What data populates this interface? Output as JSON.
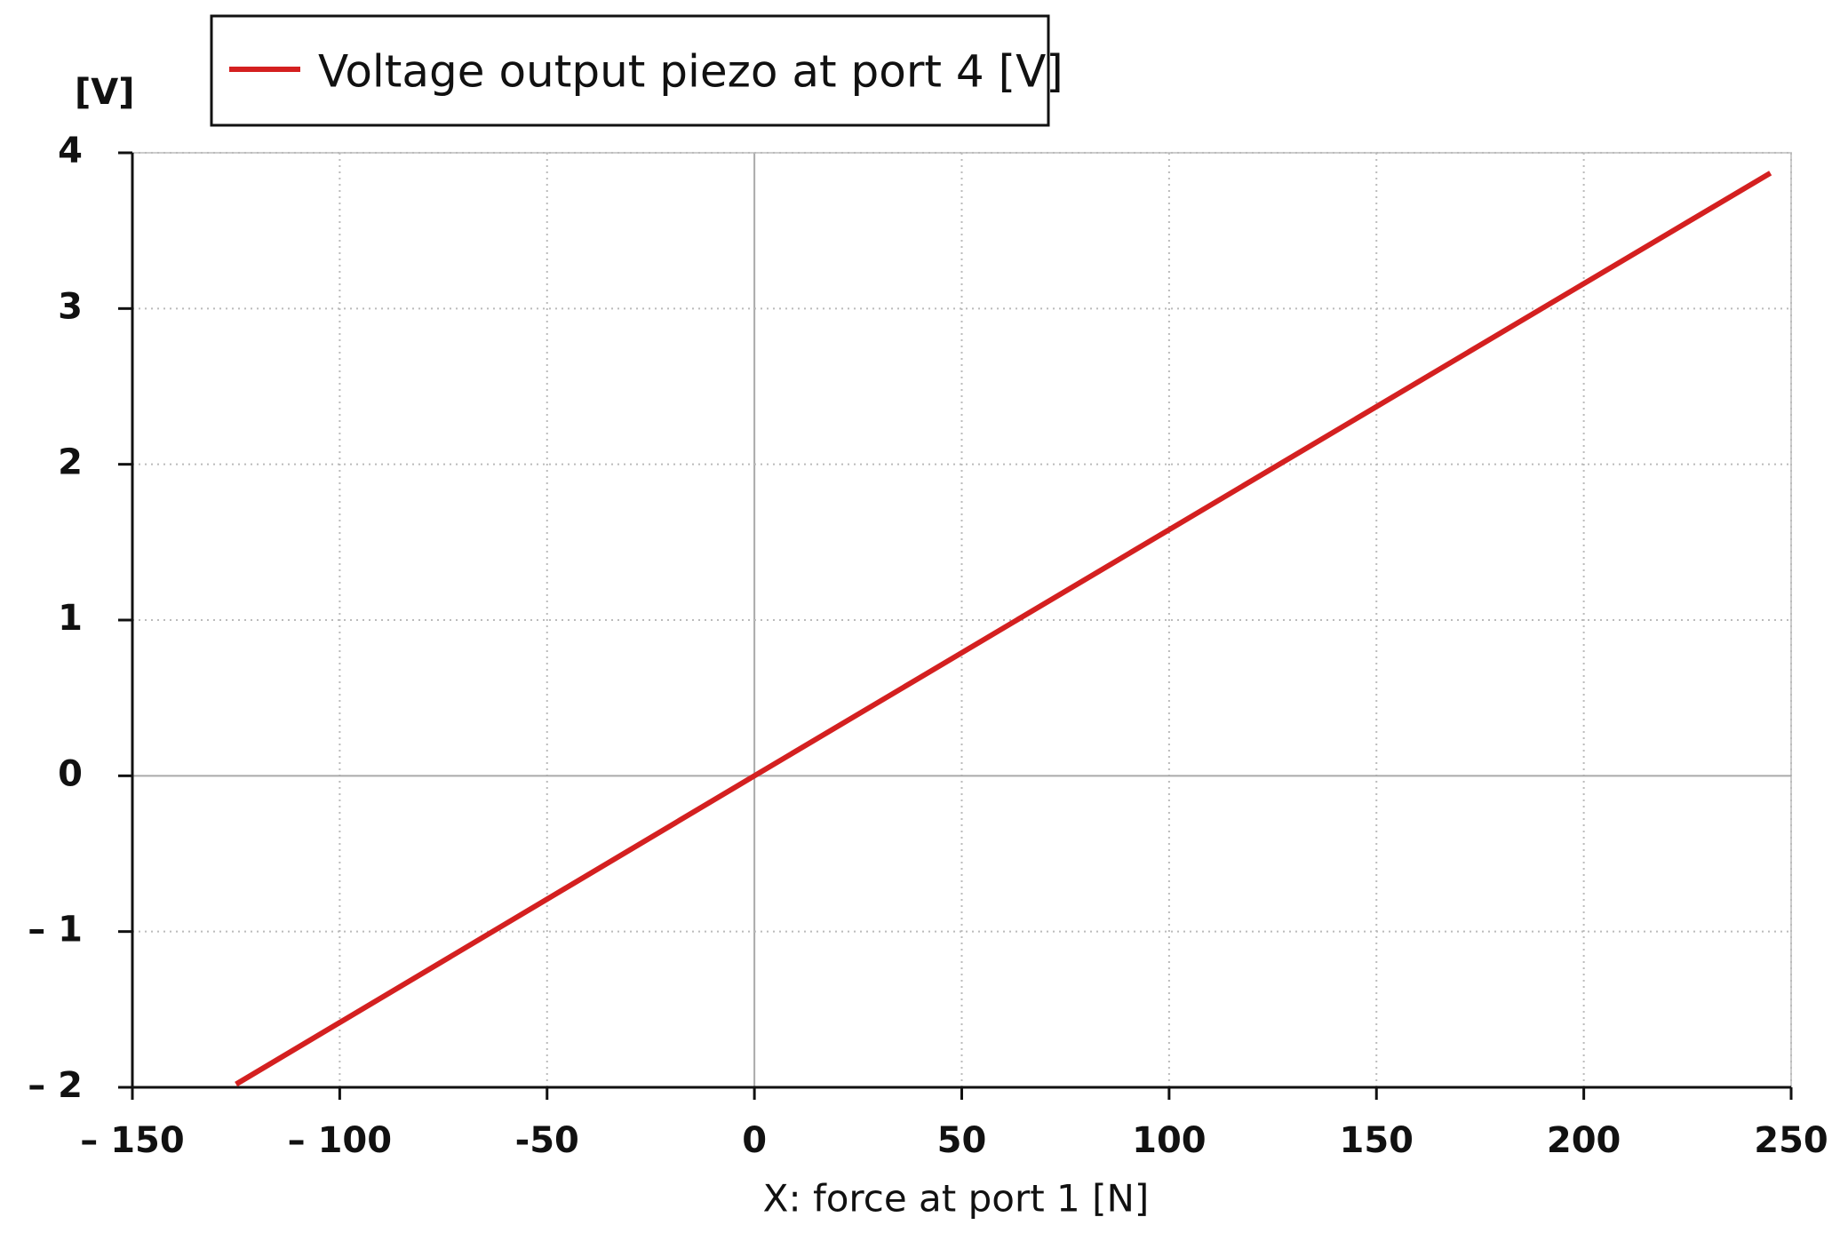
{
  "chart_data": {
    "type": "line",
    "legend_label": "Voltage output piezo at port 4 [V]",
    "y_axis_label": "[V]",
    "x_axis_label": "X: force at port 1 [N]",
    "x": [
      -125,
      0,
      100,
      200,
      245
    ],
    "series": [
      {
        "name": "Voltage output piezo at port 4 [V]",
        "color": "#d42020",
        "values": [
          -1.98,
          0,
          1.58,
          3.16,
          3.87
        ]
      }
    ],
    "xlim": [
      -150,
      250
    ],
    "xticks": [
      {
        "value": -150,
        "label": "– 150"
      },
      {
        "value": -100,
        "label": "– 100"
      },
      -50,
      0,
      50,
      100,
      150,
      200,
      250
    ],
    "ylim": [
      -2,
      4
    ],
    "yticks": [
      {
        "value": -2,
        "label": "– 2"
      },
      {
        "value": -1,
        "label": "– 1"
      },
      0,
      1,
      2,
      3,
      4
    ],
    "grid": true
  }
}
